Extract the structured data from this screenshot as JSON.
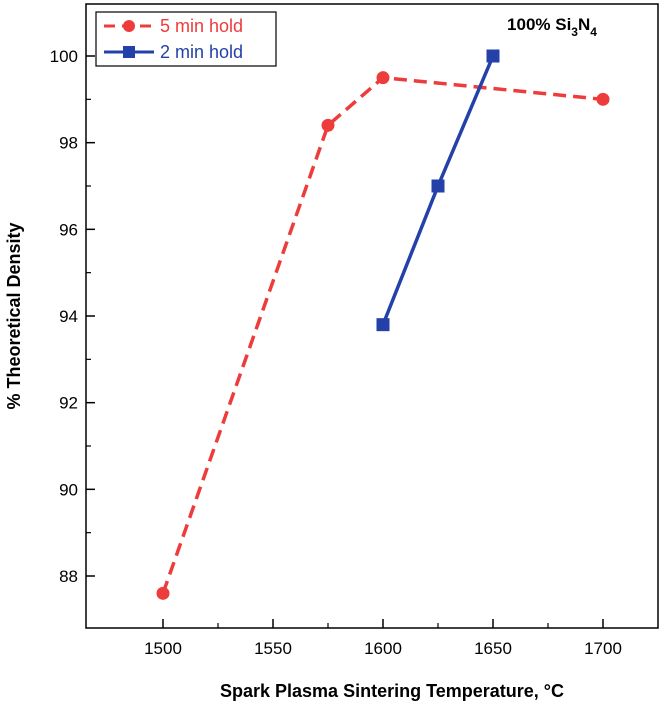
{
  "chart_data": {
    "type": "line",
    "title": "",
    "xlabel": "Spark Plasma Sintering Temperature, °C",
    "ylabel": "% Theoretical Density",
    "xlim": [
      1465,
      1725
    ],
    "ylim": [
      86.8,
      101.2
    ],
    "xticks": [
      1500,
      1550,
      1600,
      1650,
      1700
    ],
    "yticks": [
      88,
      90,
      92,
      94,
      96,
      98,
      100
    ],
    "grid": false,
    "legend_position": "top-left",
    "series": [
      {
        "name": "5 min hold",
        "color": "#ee3b3b",
        "line_style": "dashed",
        "marker": "circle",
        "x": [
          1500,
          1575,
          1600,
          1700
        ],
        "y": [
          87.6,
          98.4,
          99.5,
          99.0
        ]
      },
      {
        "name": "2 min hold",
        "color": "#2341a8",
        "line_style": "solid",
        "marker": "square",
        "x": [
          1600,
          1625,
          1650
        ],
        "y": [
          93.8,
          97.0,
          100.0
        ]
      }
    ],
    "annotation": {
      "prefix": "100% Si",
      "sub1": "3",
      "mid": "N",
      "sub2": "4"
    }
  }
}
